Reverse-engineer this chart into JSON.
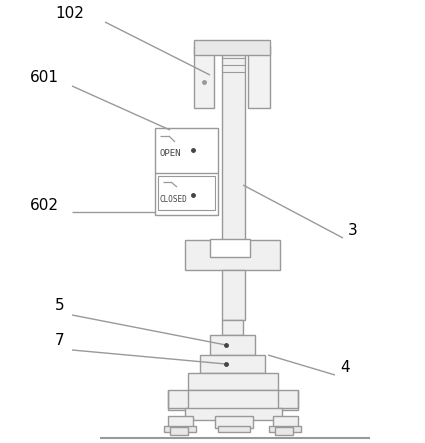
{
  "bg_color": "#ffffff",
  "line_color": "#999999",
  "line_width": 1.0,
  "label_fontsize": 11,
  "fig_w": 4.25,
  "fig_h": 4.43,
  "dpi": 100
}
